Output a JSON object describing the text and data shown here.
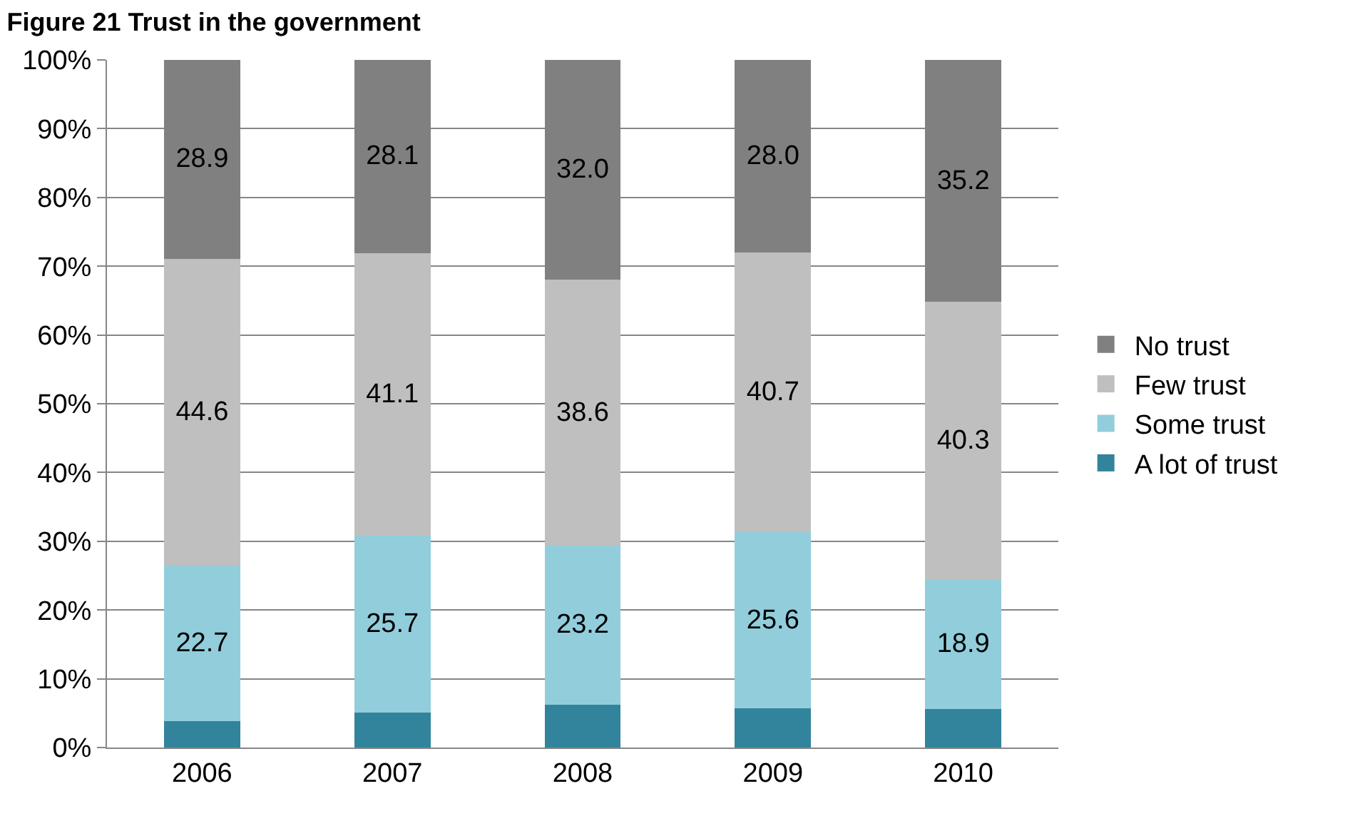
{
  "chart_data": {
    "type": "bar",
    "stacked": true,
    "title": "Figure 21 Trust in the government",
    "categories": [
      "2006",
      "2007",
      "2008",
      "2009",
      "2010"
    ],
    "series": [
      {
        "name": "A lot of trust",
        "color": "#31849b",
        "values": [
          3.8,
          5.1,
          6.2,
          5.7,
          5.6
        ],
        "value_labels": [
          null,
          null,
          null,
          null,
          null
        ]
      },
      {
        "name": "Some trust",
        "color": "#92cddc",
        "values": [
          22.7,
          25.7,
          23.2,
          25.6,
          18.9
        ],
        "value_labels": [
          "22.7",
          "25.7",
          "23.2",
          "25.6",
          "18.9"
        ]
      },
      {
        "name": "Few trust",
        "color": "#bfbfbf",
        "values": [
          44.6,
          41.1,
          38.6,
          40.7,
          40.3
        ],
        "value_labels": [
          "44.6",
          "41.1",
          "38.6",
          "40.7",
          "40.3"
        ]
      },
      {
        "name": "No trust",
        "color": "#808080",
        "values": [
          28.9,
          28.1,
          32.0,
          28.0,
          35.2
        ],
        "value_labels": [
          "28.9",
          "28.1",
          "32.0",
          "28.0",
          "35.2"
        ]
      }
    ],
    "ylim": [
      0,
      100
    ],
    "yticks": [
      {
        "value": 0,
        "label": "0%"
      },
      {
        "value": 10,
        "label": "10%"
      },
      {
        "value": 20,
        "label": "20%"
      },
      {
        "value": 30,
        "label": "30%"
      },
      {
        "value": 40,
        "label": "40%"
      },
      {
        "value": 50,
        "label": "50%"
      },
      {
        "value": 60,
        "label": "60%"
      },
      {
        "value": 70,
        "label": "70%"
      },
      {
        "value": 80,
        "label": "80%"
      },
      {
        "value": 90,
        "label": "90%"
      },
      {
        "value": 100,
        "label": "100%"
      }
    ],
    "grid": "y",
    "legend": "right"
  }
}
